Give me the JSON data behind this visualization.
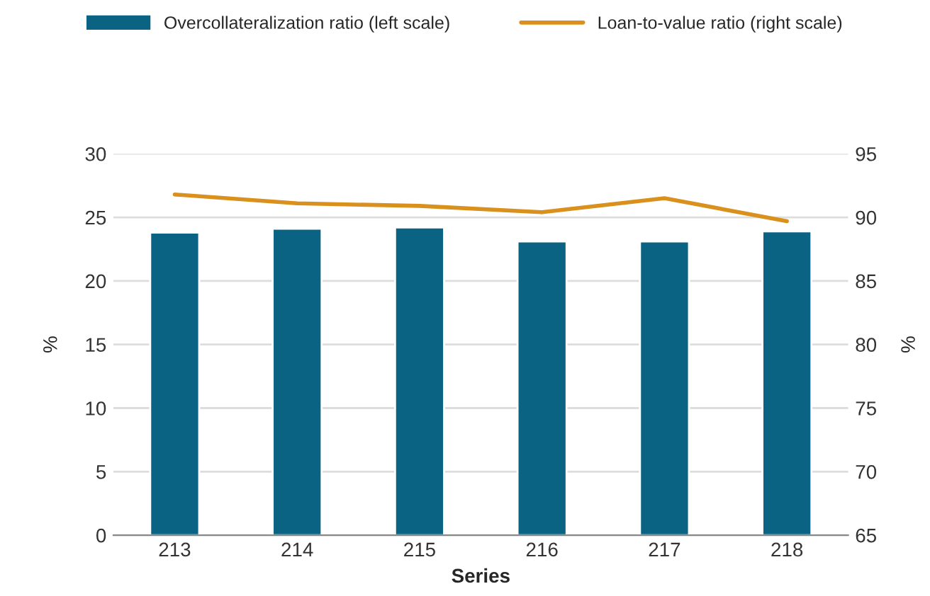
{
  "chart_data": {
    "type": "bar",
    "xlabel": "Series",
    "ylabel": "%",
    "y2label": "%",
    "categories": [
      "213",
      "214",
      "215",
      "216",
      "217",
      "218"
    ],
    "series": [
      {
        "name": "Overcollateralization ratio (left scale)",
        "color": "#0b6384",
        "values": [
          23.8,
          24.1,
          24.2,
          23.1,
          23.1,
          23.9
        ]
      },
      {
        "name": "Loan-to-value ratio (right scale)",
        "type": "line",
        "axis": "y2",
        "color": "#d9901c",
        "values": [
          91.8,
          91.1,
          90.9,
          90.4,
          91.5,
          89.7
        ]
      }
    ],
    "ylim": [
      0,
      30
    ],
    "yticks": [
      0,
      5,
      10,
      15,
      20,
      25,
      30
    ],
    "y2lim": [
      65,
      95
    ],
    "y2ticks": [
      65,
      70,
      75,
      80,
      85,
      90,
      95
    ],
    "grid": "y",
    "legend": "top"
  }
}
